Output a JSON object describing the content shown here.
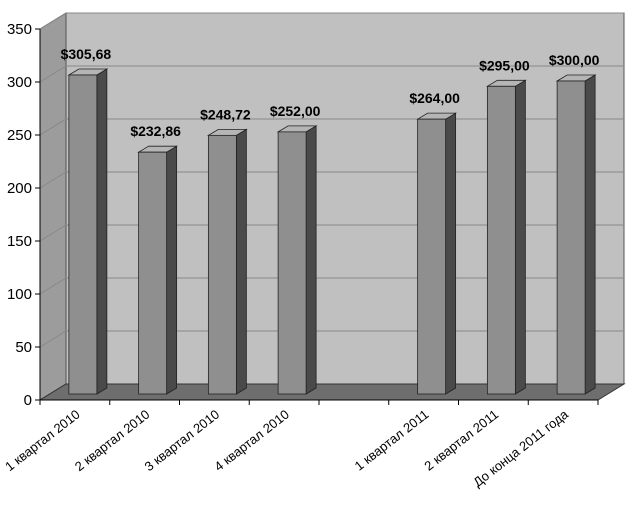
{
  "chart_data": {
    "type": "bar",
    "categories": [
      "1 квартал 2010",
      "2 квартал 2010",
      "3 квартал 2010",
      "4 квартал 2010",
      "",
      "1 квартал 2011",
      "2 квартал 2011",
      "До конца 2011 года"
    ],
    "values": [
      305.68,
      232.86,
      248.72,
      252.0,
      null,
      264.0,
      295.0,
      300.0
    ],
    "data_labels": [
      "$305,68",
      "$232,86",
      "$248,72",
      "$252,00",
      "",
      "$264,00",
      "$295,00",
      "$300,00"
    ],
    "y_ticks": [
      0,
      50,
      100,
      150,
      200,
      250,
      300,
      350
    ],
    "ylim": [
      0,
      350
    ],
    "grid": true,
    "style": "3d",
    "colors": {
      "plot_back": "#c0c0c0",
      "wall_side": "#9c9c9c",
      "floor": "#6e6e6e",
      "bar_front": "#8f8f8f",
      "bar_side": "#4a4a4a",
      "bar_top": "#b5b5b5",
      "grid": "#888888"
    }
  }
}
